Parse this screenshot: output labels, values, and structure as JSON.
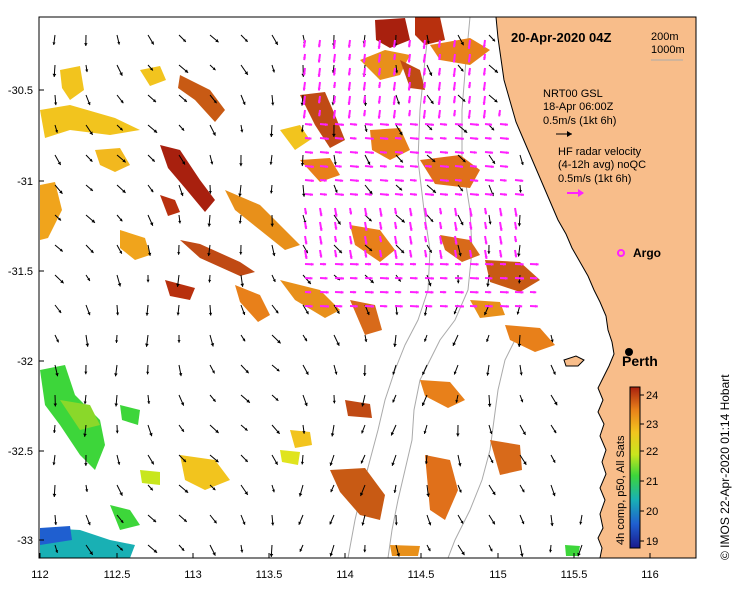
{
  "title": "20-Apr-2020 04Z",
  "depth_legend": [
    "200m",
    "1000m"
  ],
  "gsl_label": [
    "NRT00 GSL",
    "18-Apr 06:00Z",
    "0.5m/s (1kt 6h)"
  ],
  "hf_label": [
    "HF radar velocity",
    "(4-12h avg) noQC",
    "0.5m/s (1kt 6h)"
  ],
  "argo_label": "Argo",
  "city_label": "Perth",
  "colorbar": {
    "title": "4h comp, p50, All Sats",
    "ticks": [
      "19",
      "20",
      "21",
      "22",
      "23",
      "24"
    ],
    "colors": [
      "#1a1a8c",
      "#1f5fd0",
      "#19b0b4",
      "#3dd63a",
      "#c8e61e",
      "#f2c41e",
      "#e8801a",
      "#a8200e"
    ]
  },
  "credit": "© IMOS 22-Apr-2020 01:14 Hobart",
  "axes": {
    "x_ticks": [
      "112",
      "112.5",
      "113",
      "113.5",
      "114",
      "114.5",
      "115",
      "115.5",
      "116"
    ],
    "y_ticks": [
      "-30.5",
      "-31",
      "-31.5",
      "-32",
      "-32.5",
      "-33"
    ]
  },
  "colors": {
    "land": "#f8bd8a",
    "hf_arrow": "#ff22ff",
    "gsl_arrow": "#000000",
    "isobath": "#aaaaaa"
  }
}
